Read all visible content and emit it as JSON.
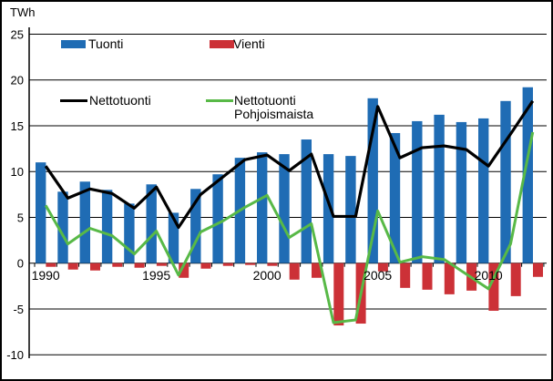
{
  "axis": {
    "unit_label": "TWh"
  },
  "legend": {
    "tuonti": "Tuonti",
    "vienti": "Vienti",
    "nettotuonti": "Nettotuonti",
    "nettotuonti_pohjoismaista_line1": "Nettotuonti",
    "nettotuonti_pohjoismaista_line2": "Pohjoismaista"
  },
  "colors": {
    "import_blue": "#1f6cb4",
    "export_red": "#cc3137",
    "net_black": "#000000",
    "net_nordic_green": "#58b947"
  },
  "chart_data": {
    "type": "bar",
    "subtype": "clustered-bars-with-lines",
    "ylabel": "TWh",
    "ylim": [
      -10,
      25
    ],
    "grid": true,
    "legend_position": "inside-top",
    "y_ticks": [
      25,
      20,
      15,
      10,
      5,
      0,
      -5,
      -10
    ],
    "x_ticks": [
      {
        "label": "1990",
        "index": 0
      },
      {
        "label": "1995",
        "index": 5
      },
      {
        "label": "2000",
        "index": 10
      },
      {
        "label": "2005",
        "index": 15
      },
      {
        "label": "2010",
        "index": 20
      }
    ],
    "categories": [
      "1990",
      "1991",
      "1992",
      "1993",
      "1994",
      "1995",
      "1996",
      "1997",
      "1998",
      "1999",
      "2000",
      "2001",
      "2002",
      "2003",
      "2004",
      "2005",
      "2006",
      "2007",
      "2008",
      "2009",
      "2010",
      "2011",
      "2012"
    ],
    "series": [
      {
        "name": "Tuonti",
        "type": "bar",
        "color": "#1f6cb4",
        "values": [
          11.0,
          7.8,
          8.9,
          8.0,
          6.5,
          8.6,
          5.5,
          8.1,
          9.7,
          11.5,
          12.1,
          11.9,
          13.5,
          11.9,
          11.7,
          18.0,
          14.2,
          15.5,
          16.2,
          15.4,
          15.8,
          17.7,
          19.2
        ]
      },
      {
        "name": "Vienti",
        "type": "bar",
        "color": "#cc3137",
        "values": [
          -0.4,
          -0.7,
          -0.8,
          -0.4,
          -0.5,
          -0.3,
          -1.6,
          -0.6,
          -0.3,
          -0.2,
          -0.3,
          -1.8,
          -1.6,
          -6.8,
          -6.6,
          -0.9,
          -2.7,
          -2.9,
          -3.4,
          -3.0,
          -5.2,
          -3.6,
          -1.5
        ]
      },
      {
        "name": "Nettotuonti",
        "type": "line",
        "color": "#000000",
        "values": [
          10.6,
          7.1,
          8.1,
          7.6,
          6.0,
          8.3,
          3.9,
          7.5,
          9.4,
          11.3,
          11.8,
          10.1,
          11.9,
          5.1,
          5.1,
          17.1,
          11.5,
          12.6,
          12.8,
          12.4,
          10.6,
          14.1,
          17.7
        ]
      },
      {
        "name": "Nettotuonti Pohjoismaista",
        "type": "line",
        "color": "#58b947",
        "values": [
          6.3,
          2.1,
          3.8,
          3.0,
          1.0,
          3.5,
          -1.3,
          3.4,
          4.6,
          6.1,
          7.4,
          2.8,
          4.3,
          -6.5,
          -6.2,
          5.7,
          0.1,
          0.7,
          0.4,
          -1.2,
          -2.8,
          2.1,
          14.3
        ]
      }
    ]
  }
}
